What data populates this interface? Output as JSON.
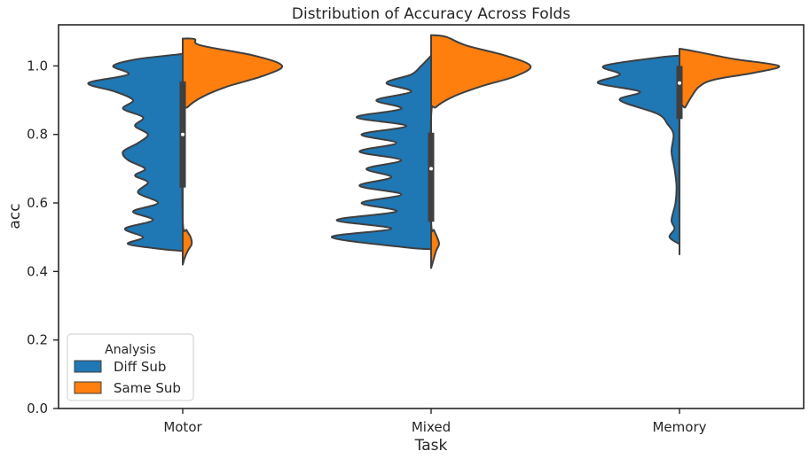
{
  "chart_data": {
    "type": "violin",
    "split": true,
    "title": "Distribution of Accuracy Across Folds",
    "xlabel": "Task",
    "ylabel": "acc",
    "ylim": [
      0.0,
      1.12
    ],
    "yticks": [
      0.0,
      0.2,
      0.4,
      0.6,
      0.8,
      1.0
    ],
    "ytick_labels": [
      "0.0",
      "0.2",
      "0.4",
      "0.6",
      "0.8",
      "1.0"
    ],
    "categories": [
      "Motor",
      "Mixed",
      "Memory"
    ],
    "legend": {
      "title": "Analysis",
      "position": "lower-left",
      "entries": [
        {
          "name": "Diff Sub",
          "color": "#1f77b4"
        },
        {
          "name": "Same Sub",
          "color": "#ff7f0e"
        }
      ]
    },
    "series": [
      {
        "name": "Diff Sub",
        "side": "left",
        "color": "#1f77b4",
        "groups": [
          {
            "category": "Motor",
            "profile": [
              [
                0.46,
                0.0
              ],
              [
                0.465,
                0.2
              ],
              [
                0.48,
                0.55
              ],
              [
                0.5,
                0.4
              ],
              [
                0.525,
                0.58
              ],
              [
                0.55,
                0.3
              ],
              [
                0.575,
                0.5
              ],
              [
                0.6,
                0.25
              ],
              [
                0.63,
                0.45
              ],
              [
                0.66,
                0.35
              ],
              [
                0.68,
                0.48
              ],
              [
                0.7,
                0.38
              ],
              [
                0.725,
                0.55
              ],
              [
                0.75,
                0.6
              ],
              [
                0.775,
                0.45
              ],
              [
                0.8,
                0.35
              ],
              [
                0.825,
                0.48
              ],
              [
                0.85,
                0.4
              ],
              [
                0.875,
                0.6
              ],
              [
                0.9,
                0.5
              ],
              [
                0.925,
                0.68
              ],
              [
                0.95,
                0.95
              ],
              [
                0.975,
                0.55
              ],
              [
                1.0,
                0.7
              ],
              [
                1.02,
                0.45
              ],
              [
                1.035,
                0.0
              ]
            ]
          },
          {
            "category": "Mixed",
            "profile": [
              [
                0.465,
                0.0
              ],
              [
                0.47,
                0.25
              ],
              [
                0.5,
                1.0
              ],
              [
                0.525,
                0.4
              ],
              [
                0.55,
                0.95
              ],
              [
                0.575,
                0.35
              ],
              [
                0.6,
                0.7
              ],
              [
                0.625,
                0.3
              ],
              [
                0.65,
                0.72
              ],
              [
                0.675,
                0.4
              ],
              [
                0.7,
                0.65
              ],
              [
                0.725,
                0.3
              ],
              [
                0.75,
                0.72
              ],
              [
                0.775,
                0.35
              ],
              [
                0.8,
                0.7
              ],
              [
                0.825,
                0.25
              ],
              [
                0.85,
                0.75
              ],
              [
                0.875,
                0.3
              ],
              [
                0.9,
                0.55
              ],
              [
                0.925,
                0.2
              ],
              [
                0.95,
                0.45
              ],
              [
                0.975,
                0.2
              ],
              [
                1.0,
                0.1
              ],
              [
                1.03,
                0.0
              ]
            ]
          },
          {
            "category": "Memory",
            "profile": [
              [
                0.48,
                0.0
              ],
              [
                0.5,
                0.1
              ],
              [
                0.525,
                0.05
              ],
              [
                0.55,
                0.08
              ],
              [
                0.6,
                0.04
              ],
              [
                0.65,
                0.03
              ],
              [
                0.7,
                0.05
              ],
              [
                0.75,
                0.08
              ],
              [
                0.8,
                0.06
              ],
              [
                0.83,
                0.12
              ],
              [
                0.86,
                0.22
              ],
              [
                0.9,
                0.6
              ],
              [
                0.925,
                0.4
              ],
              [
                0.95,
                0.82
              ],
              [
                0.975,
                0.6
              ],
              [
                1.0,
                0.76
              ],
              [
                1.025,
                0.2
              ],
              [
                1.03,
                0.0
              ]
            ]
          }
        ]
      },
      {
        "name": "Same Sub",
        "side": "right",
        "color": "#ff7f0e",
        "groups": [
          {
            "category": "Motor",
            "profile": [
              [
                0.42,
                0.0
              ],
              [
                0.44,
                0.02
              ],
              [
                0.46,
                0.05
              ],
              [
                0.48,
                0.09
              ],
              [
                0.5,
                0.08
              ],
              [
                0.52,
                0.04
              ],
              [
                0.55,
                0.0
              ],
              [
                0.85,
                0.0
              ],
              [
                0.88,
                0.05
              ],
              [
                0.91,
                0.2
              ],
              [
                0.94,
                0.45
              ],
              [
                0.97,
                0.8
              ],
              [
                1.0,
                1.0
              ],
              [
                1.03,
                0.72
              ],
              [
                1.06,
                0.18
              ],
              [
                1.078,
                0.12
              ],
              [
                1.08,
                0.0
              ]
            ]
          },
          {
            "category": "Mixed",
            "profile": [
              [
                0.41,
                0.0
              ],
              [
                0.43,
                0.02
              ],
              [
                0.46,
                0.05
              ],
              [
                0.48,
                0.08
              ],
              [
                0.5,
                0.06
              ],
              [
                0.52,
                0.03
              ],
              [
                0.55,
                0.0
              ],
              [
                0.85,
                0.0
              ],
              [
                0.88,
                0.05
              ],
              [
                0.91,
                0.22
              ],
              [
                0.94,
                0.5
              ],
              [
                0.97,
                0.85
              ],
              [
                1.0,
                1.0
              ],
              [
                1.03,
                0.75
              ],
              [
                1.06,
                0.35
              ],
              [
                1.085,
                0.15
              ],
              [
                1.09,
                0.0
              ]
            ]
          },
          {
            "category": "Memory",
            "profile": [
              [
                0.45,
                0.0
              ],
              [
                0.5,
                0.0
              ],
              [
                0.85,
                0.0
              ],
              [
                0.88,
                0.06
              ],
              [
                0.91,
                0.12
              ],
              [
                0.94,
                0.2
              ],
              [
                0.96,
                0.35
              ],
              [
                0.98,
                0.75
              ],
              [
                1.0,
                1.0
              ],
              [
                1.02,
                0.55
              ],
              [
                1.04,
                0.2
              ],
              [
                1.048,
                0.05
              ],
              [
                1.05,
                0.0
              ]
            ]
          }
        ]
      }
    ],
    "box": [
      {
        "category": "Motor",
        "q1": 0.645,
        "median": 0.8,
        "q3": 0.955,
        "whisker_low": 0.46,
        "whisker_high": 1.035
      },
      {
        "category": "Mixed",
        "q1": 0.545,
        "median": 0.7,
        "q3": 0.805,
        "whisker_low": 0.465,
        "whisker_high": 1.03
      },
      {
        "category": "Memory",
        "q1": 0.845,
        "median": 0.95,
        "q3": 1.0,
        "whisker_low": 0.48,
        "whisker_high": 1.03
      }
    ]
  }
}
